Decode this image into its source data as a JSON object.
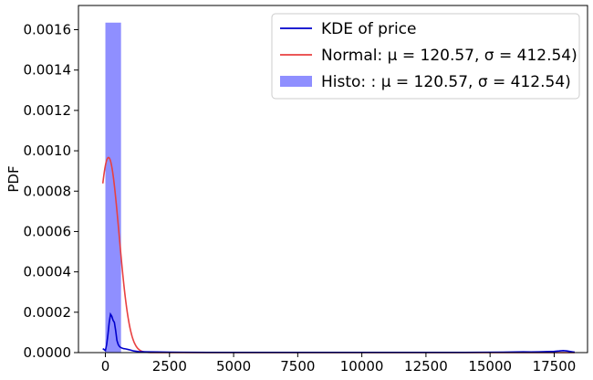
{
  "chart_data": {
    "type": "histogram",
    "title": "",
    "xlabel": "",
    "ylabel": "PDF",
    "xlim": [
      -1050,
      18800
    ],
    "ylim": [
      0,
      0.00172
    ],
    "xticks": [
      0,
      2500,
      5000,
      7500,
      10000,
      12500,
      15000,
      17500
    ],
    "yticks": [
      0.0,
      0.0002,
      0.0004,
      0.0006,
      0.0008,
      0.001,
      0.0012,
      0.0014,
      0.0016
    ],
    "ytick_labels": [
      "0.0000",
      "0.0002",
      "0.0004",
      "0.0006",
      "0.0008",
      "0.0010",
      "0.0012",
      "0.0014",
      "0.0016"
    ],
    "grid": false,
    "legend_position": "top-right",
    "legend": [
      {
        "label": "KDE of price",
        "kind": "line",
        "color": "#0000cc"
      },
      {
        "label": "Normal: μ = 120.57, σ = 412.54)",
        "kind": "line",
        "color": "#e84040"
      },
      {
        "label": "Histo: : μ = 120.57, σ = 412.54)",
        "kind": "patch",
        "color": "#8f8fff"
      }
    ],
    "histogram": {
      "color": "#8f8fff",
      "bins": [
        {
          "x0": 0,
          "x1": 610,
          "density": 0.001635
        }
      ]
    },
    "normal_curve": {
      "color": "#e84040",
      "mu": 120.57,
      "sigma": 412.54,
      "x_range": [
        -100,
        18300
      ]
    },
    "kde": {
      "color": "#0000cc",
      "x": [
        -100,
        0,
        50,
        100,
        150,
        200,
        250,
        300,
        350,
        400,
        450,
        500,
        550,
        600,
        700,
        800,
        900,
        1000,
        1100,
        1300,
        1600,
        2000,
        2500,
        3000,
        4000,
        6000,
        8000,
        10000,
        12000,
        14000,
        15500,
        16000,
        16300,
        16600,
        16900,
        17200,
        17500,
        17700,
        17850,
        18000,
        18100,
        18200,
        18300
      ],
      "y": [
        2e-05,
        1e-05,
        4e-05,
        9e-05,
        0.00015,
        0.00019,
        0.00018,
        0.00016,
        0.00015,
        0.00011,
        6e-05,
        4e-05,
        3e-05,
        2.5e-05,
        2e-05,
        1.8e-05,
        1.5e-05,
        1.2e-05,
        8e-06,
        5e-06,
        4e-06,
        3e-06,
        2e-06,
        1.5e-06,
        1e-06,
        1e-06,
        1e-06,
        1e-06,
        1e-06,
        1e-06,
        2e-06,
        3e-06,
        4e-06,
        3e-06,
        4e-06,
        5e-06,
        6e-06,
        8e-06,
        1e-05,
        8e-06,
        6e-06,
        4e-06,
        2e-06
      ]
    }
  }
}
